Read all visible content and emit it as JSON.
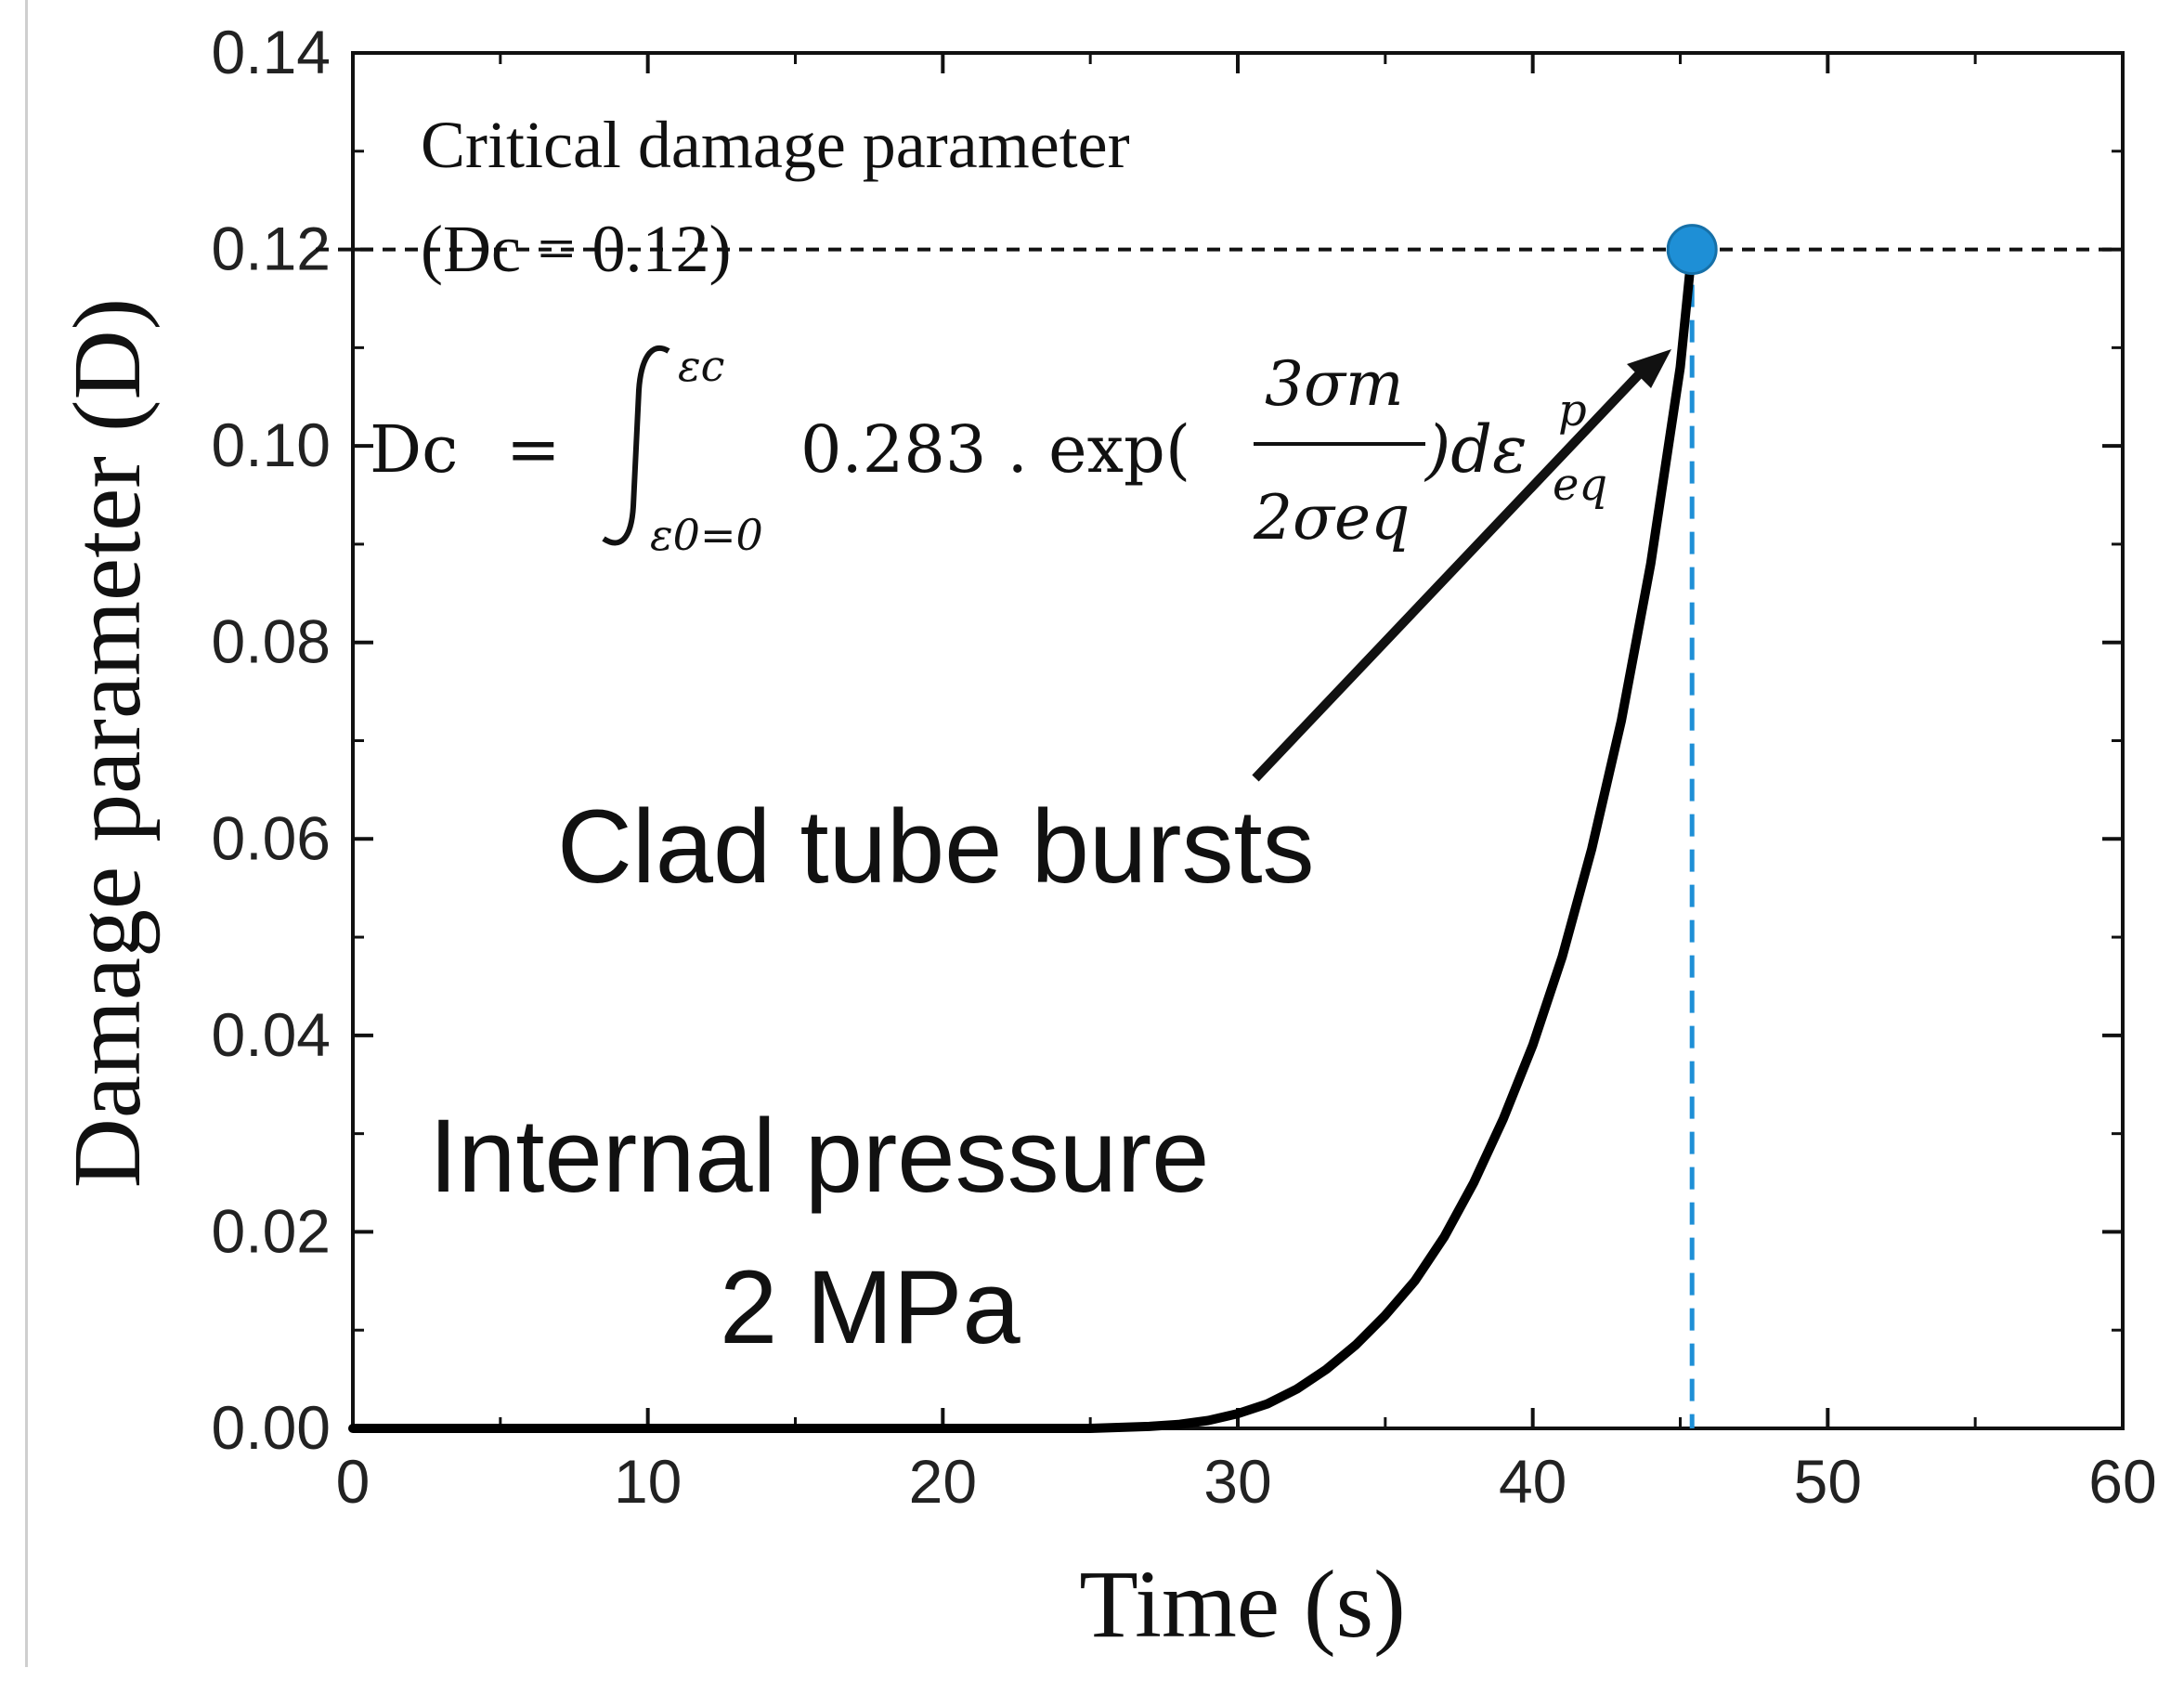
{
  "chart_data": {
    "type": "line",
    "xlabel": "Time (s)",
    "ylabel": "Damage parameter (D)",
    "xlim": [
      0,
      60
    ],
    "ylim": [
      0,
      0.14
    ],
    "xticks": [
      "0",
      "10",
      "20",
      "30",
      "40",
      "50",
      "60"
    ],
    "yticks": [
      "0.00",
      "0.02",
      "0.04",
      "0.06",
      "0.08",
      "0.10",
      "0.12",
      "0.14"
    ],
    "series": [
      {
        "color": "#000000",
        "x": [
          0,
          25,
          27,
          28,
          29,
          30,
          31,
          32,
          33,
          34,
          35,
          36,
          37,
          38,
          39,
          40,
          41,
          42,
          43,
          44,
          45,
          45.4
        ],
        "y": [
          0,
          0,
          0.0002,
          0.0004,
          0.0008,
          0.0015,
          0.0025,
          0.004,
          0.006,
          0.0085,
          0.0115,
          0.015,
          0.0195,
          0.025,
          0.0315,
          0.039,
          0.048,
          0.059,
          0.072,
          0.088,
          0.108,
          0.12
        ]
      }
    ],
    "critical_value": 0.12,
    "burst_point": {
      "x": 45.4,
      "y": 0.12,
      "color": "#1e8fd6"
    },
    "annotations": {
      "critical_title": "Critical damage parameter",
      "critical_value_text": "(Dc = 0.12)",
      "burst_label": "Clad tube bursts",
      "pressure_line1": "Internal pressure",
      "pressure_line2": "2 MPa"
    },
    "equation": {
      "lhs": "Dc",
      "equals": "=",
      "upper_limit": "εc",
      "lower_limit": "ε0=0",
      "body": "0.283 . exp(",
      "numerator": "3σm",
      "denominator": "2σeq",
      "tail": ")dε",
      "tail_sup": "p",
      "tail_sub": "eq"
    }
  }
}
